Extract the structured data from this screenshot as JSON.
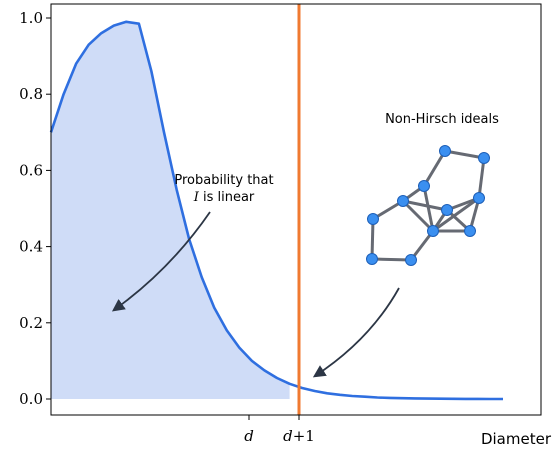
{
  "chart_data": {
    "type": "area",
    "title": "",
    "xlabel": "Diameter",
    "ylabel": "",
    "ylim": [
      0,
      1.05
    ],
    "y_ticks": [
      0.0,
      0.2,
      0.4,
      0.6,
      0.8,
      1.0
    ],
    "y_tick_labels": [
      "0.0",
      "0.2",
      "0.4",
      "0.6",
      "0.8",
      "1.0"
    ],
    "x_ticks": [
      {
        "label_main": "d",
        "label_extra": ""
      },
      {
        "label_main": "d",
        "label_extra": "+1"
      }
    ],
    "series": [
      {
        "values": [
          0.7,
          0.8,
          0.88,
          0.93,
          0.96,
          0.98,
          0.99,
          0.985,
          0.86,
          0.7,
          0.55,
          0.42,
          0.32,
          0.24,
          0.18,
          0.135,
          0.1,
          0.075,
          0.055,
          0.04,
          0.029,
          0.021,
          0.015,
          0.011,
          0.008,
          0.006,
          0.004,
          0.003,
          0.002,
          0.0015,
          0.001,
          0.0007,
          0.0005,
          0.0003,
          0.0002,
          0.0001,
          0.0
        ],
        "fill_until_index": 19,
        "color": "#2f6fe0",
        "fill_color": "#cfdcf7"
      }
    ],
    "threshold_line": {
      "at_tick": 1,
      "color": "#f07a30"
    },
    "annotations": [
      {
        "lines": [
          "Probability that",
          "I is linear"
        ],
        "italic_word": "I"
      },
      {
        "lines": [
          "Non-Hirsch ideals"
        ]
      }
    ],
    "graph_icon": {
      "node_color": "#3a8ff0",
      "edge_color": "#666a73"
    },
    "arrow_color": "#2c3645",
    "grid": false,
    "legend": "none"
  }
}
